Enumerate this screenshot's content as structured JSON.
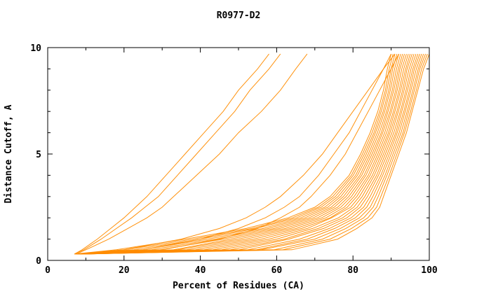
{
  "chart_data": {
    "type": "line",
    "title": "R0977-D2",
    "xlabel": "Percent of Residues (CA)",
    "ylabel": "Distance Cutoff, A",
    "xlim": [
      0,
      100
    ],
    "ylim": [
      0,
      10
    ],
    "x_ticks": [
      "0",
      "20",
      "40",
      "60",
      "80",
      "100"
    ],
    "x_tick_values": [
      0,
      20,
      40,
      60,
      80,
      100
    ],
    "x_minor_tick_values": [
      10,
      30,
      50,
      70,
      90
    ],
    "y_ticks": [
      "0",
      "5",
      "10"
    ],
    "y_tick_values": [
      0,
      5,
      10
    ],
    "y_minor_tick_values": [
      1,
      2,
      3,
      4,
      6,
      7,
      8,
      9
    ],
    "grid": "off",
    "legend": "none",
    "line_color": "#ff8c00",
    "axis_color": "#000000",
    "y_levels": [
      0.3,
      0.5,
      1,
      1.5,
      2,
      2.5,
      3,
      4,
      5,
      6,
      7,
      8,
      9,
      9.7
    ],
    "series_x_at_y": [
      [
        7.0,
        18.0,
        36.0,
        52.0,
        63.0,
        70.0,
        74.0,
        79.0,
        82.0,
        84.5,
        86.5,
        88.0,
        89.0,
        90.0
      ],
      [
        7.2,
        20.3,
        38.0,
        53.5,
        64.1,
        70.9,
        74.7,
        79.6,
        82.5,
        85.0,
        87.0,
        88.5,
        89.5,
        90.5
      ],
      [
        7.3,
        22.6,
        40.0,
        54.6,
        65.2,
        71.7,
        75.4,
        80.1,
        83.0,
        85.5,
        87.4,
        88.9,
        90.0,
        91.0
      ],
      [
        7.5,
        24.9,
        42.0,
        56.4,
        66.3,
        72.6,
        76.1,
        80.7,
        83.5,
        85.9,
        87.9,
        89.4,
        90.4,
        91.5
      ],
      [
        7.6,
        27.2,
        44.0,
        57.8,
        67.4,
        73.4,
        76.8,
        81.2,
        84.0,
        86.4,
        88.3,
        89.8,
        90.9,
        92.0
      ],
      [
        7.8,
        29.5,
        46.0,
        59.3,
        68.5,
        74.3,
        77.5,
        81.8,
        84.5,
        86.9,
        88.8,
        90.3,
        91.4,
        92.5
      ],
      [
        7.9,
        33.0,
        48.0,
        60.7,
        69.6,
        75.1,
        78.2,
        82.3,
        85.0,
        87.4,
        89.2,
        90.7,
        91.9,
        93.0
      ],
      [
        8.1,
        34.1,
        50.0,
        62.2,
        70.7,
        76.0,
        78.9,
        82.9,
        85.5,
        87.8,
        89.7,
        91.2,
        92.3,
        93.5
      ],
      [
        8.2,
        36.4,
        52.0,
        63.6,
        71.8,
        76.8,
        79.6,
        83.4,
        86.0,
        88.3,
        90.1,
        91.6,
        92.8,
        94.0
      ],
      [
        8.4,
        38.7,
        54.0,
        65.1,
        72.9,
        77.7,
        80.3,
        84.0,
        86.5,
        88.8,
        90.6,
        92.1,
        93.3,
        94.5
      ],
      [
        8.5,
        41.0,
        56.0,
        66.5,
        74.0,
        78.5,
        81.0,
        84.5,
        87.0,
        89.3,
        91.0,
        92.5,
        93.8,
        95.0
      ],
      [
        8.7,
        43.3,
        58.0,
        68.0,
        74.4,
        79.4,
        81.7,
        85.1,
        87.5,
        89.7,
        91.5,
        93.0,
        94.2,
        95.5
      ],
      [
        8.8,
        45.6,
        60.0,
        69.4,
        76.2,
        80.2,
        82.4,
        85.6,
        88.0,
        90.2,
        91.9,
        93.4,
        94.7,
        96.0
      ],
      [
        9.0,
        47.9,
        62.0,
        70.9,
        77.3,
        81.1,
        83.1,
        86.2,
        88.5,
        90.7,
        92.4,
        93.9,
        95.2,
        96.5
      ],
      [
        9.1,
        50.2,
        63.2,
        72.3,
        78.4,
        81.9,
        83.8,
        86.7,
        89.0,
        91.2,
        92.8,
        94.3,
        95.7,
        97.0
      ],
      [
        9.3,
        52.5,
        66.0,
        73.8,
        79.5,
        82.8,
        84.5,
        87.3,
        89.5,
        91.6,
        93.3,
        94.8,
        96.1,
        97.5
      ],
      [
        9.4,
        54.8,
        68.0,
        75.2,
        80.6,
        83.6,
        85.2,
        87.8,
        90.0,
        92.1,
        93.7,
        95.2,
        96.6,
        98.0
      ],
      [
        9.6,
        56.0,
        70.0,
        76.7,
        81.7,
        84.5,
        85.9,
        88.4,
        90.5,
        92.6,
        94.2,
        95.7,
        97.1,
        98.5
      ],
      [
        9.7,
        59.4,
        72.0,
        78.1,
        82.8,
        85.3,
        86.6,
        88.9,
        91.0,
        93.1,
        94.6,
        96.1,
        97.5,
        99.0
      ],
      [
        9.9,
        61.7,
        74.0,
        79.6,
        83.9,
        86.2,
        87.3,
        89.5,
        91.5,
        93.5,
        95.1,
        96.6,
        98.0,
        99.5
      ],
      [
        10.0,
        64.0,
        76.0,
        81.0,
        85.0,
        87.0,
        88.0,
        90.0,
        92.0,
        94.0,
        95.5,
        97.0,
        98.5,
        100.0
      ],
      [
        7.0,
        9.0,
        13.0,
        16.5,
        20.0,
        23.0,
        26.0,
        31.0,
        36.0,
        41.0,
        46.0,
        50.0,
        55.0,
        58.0
      ],
      [
        7.0,
        9.5,
        14.0,
        18.0,
        22.0,
        25.5,
        29.0,
        34.0,
        39.0,
        44.0,
        49.0,
        53.0,
        58.0,
        61.0
      ],
      [
        7.5,
        10.0,
        16.0,
        21.0,
        26.0,
        30.0,
        33.0,
        39.0,
        45.0,
        50.0,
        56.0,
        61.0,
        65.0,
        68.0
      ],
      [
        8.0,
        20.0,
        35.0,
        45.0,
        52.0,
        57.0,
        61.0,
        67.0,
        72.0,
        76.0,
        80.0,
        84.0,
        88.0,
        91.0
      ],
      [
        8.0,
        25.0,
        40.0,
        50.0,
        57.0,
        62.0,
        66.0,
        71.0,
        75.0,
        79.0,
        82.0,
        85.0,
        88.0,
        90.0
      ],
      [
        9.0,
        30.0,
        45.0,
        55.0,
        61.0,
        66.0,
        69.0,
        74.0,
        78.0,
        81.0,
        84.0,
        87.0,
        90.0,
        92.0
      ]
    ]
  }
}
